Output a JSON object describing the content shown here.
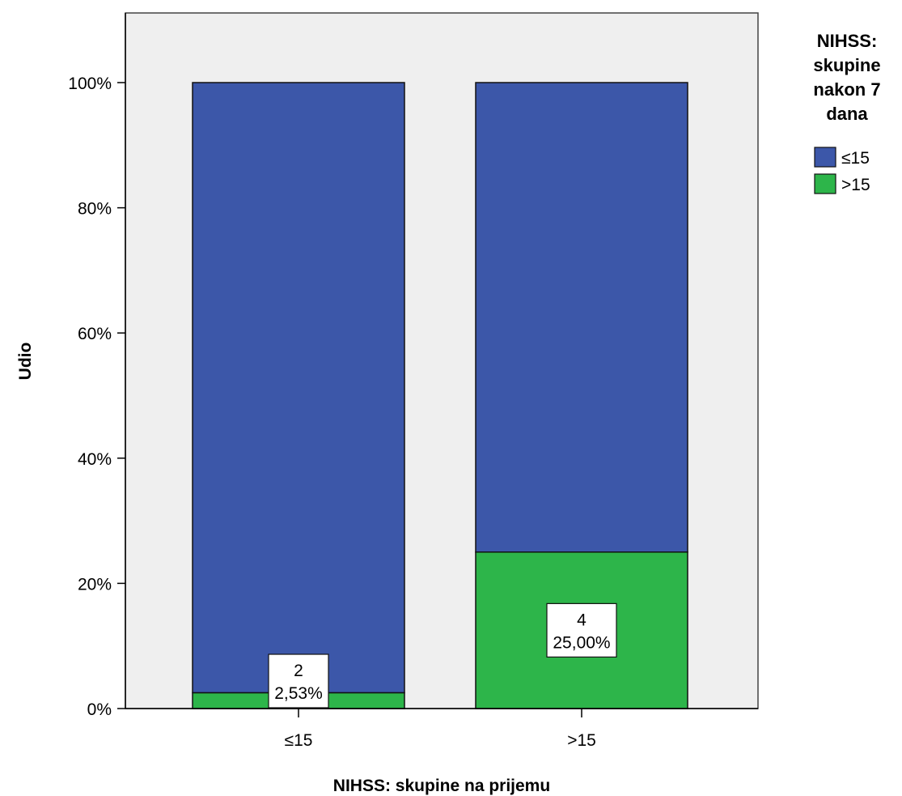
{
  "chart_data": {
    "type": "bar",
    "stacked": true,
    "categories": [
      "≤15",
      ">15"
    ],
    "series": [
      {
        "name": ">15",
        "values": [
          2.53,
          25.0
        ],
        "color": "#2db54a"
      },
      {
        "name": "≤15",
        "values": [
          97.47,
          75.0
        ],
        "color": "#3c57a9"
      }
    ],
    "data_labels": [
      {
        "category": "≤15",
        "count": "2",
        "percent": "2,53%"
      },
      {
        "category": ">15",
        "count": "4",
        "percent": "25,00%"
      }
    ],
    "xlabel": "NIHSS: skupine na prijemu",
    "ylabel": "Udio",
    "ylim": [
      0,
      100
    ],
    "y_ticks": [
      "0%",
      "20%",
      "40%",
      "60%",
      "80%",
      "100%"
    ],
    "legend": {
      "title_lines": [
        "NIHSS:",
        "skupine",
        "nakon 7",
        "dana"
      ],
      "items": [
        {
          "label": "≤15",
          "color": "#3c57a9"
        },
        {
          "label": ">15",
          "color": "#2db54a"
        }
      ],
      "position": "right"
    },
    "plot_background": "#efefef",
    "grid": false
  }
}
